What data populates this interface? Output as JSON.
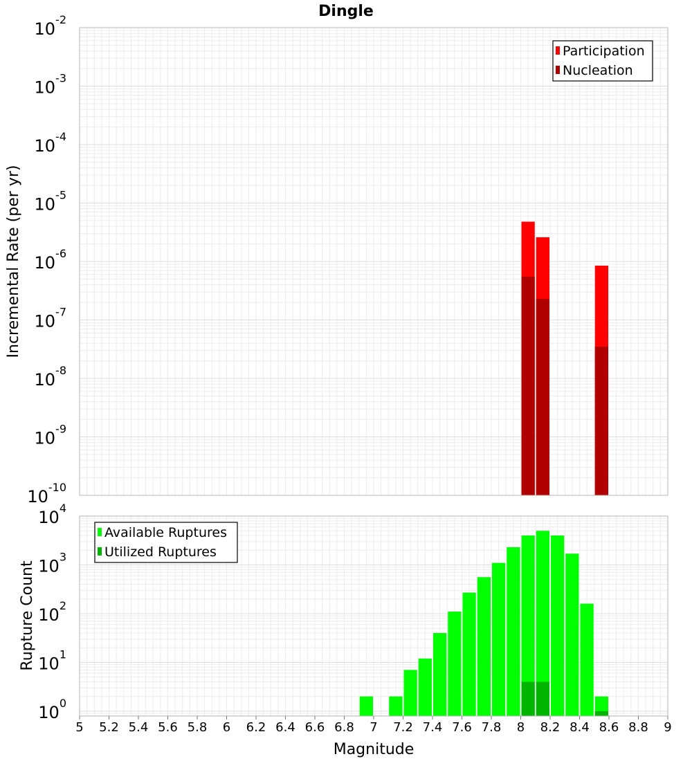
{
  "chart_data": [
    {
      "type": "bar",
      "title": "Dingle",
      "xlabel": "",
      "ylabel": "Incremental Rate (per yr)",
      "yscale": "log",
      "xlim": [
        5,
        9
      ],
      "ylim_exponents": [
        -10,
        -2
      ],
      "ytick_exponents": [
        -10,
        -9,
        -8,
        -7,
        -6,
        -5,
        -4,
        -3,
        -2
      ],
      "bin_width": 0.1,
      "grid": true,
      "legend_position": "top-right",
      "colors": {
        "Participation": "#ff0000",
        "Nucleation": "#b00000"
      },
      "series": [
        {
          "name": "Participation",
          "x": [
            8.05,
            8.15,
            8.55
          ],
          "values": [
            4.8e-06,
            2.6e-06,
            8.5e-07
          ]
        },
        {
          "name": "Nucleation",
          "x": [
            8.05,
            8.15,
            8.55
          ],
          "values": [
            5.5e-07,
            2.3e-07,
            3.5e-08
          ]
        }
      ]
    },
    {
      "type": "bar",
      "title": "",
      "xlabel": "Magnitude",
      "ylabel": "Rupture Count",
      "yscale": "log",
      "xlim": [
        5,
        9
      ],
      "ylim_exponents": [
        -0.1,
        4
      ],
      "ytick_exponents": [
        0,
        1,
        2,
        3,
        4
      ],
      "xticks": [
        "5",
        "5.2",
        "5.4",
        "5.6",
        "5.8",
        "6",
        "6.2",
        "6.4",
        "6.6",
        "6.8",
        "7",
        "7.2",
        "7.4",
        "7.6",
        "7.8",
        "8",
        "8.2",
        "8.4",
        "8.6",
        "8.8",
        "9"
      ],
      "bin_width": 0.1,
      "grid": true,
      "legend_position": "top-left",
      "colors": {
        "Available Ruptures": "#00ff00",
        "Utilized Ruptures": "#00b400"
      },
      "series": [
        {
          "name": "Available Ruptures",
          "x": [
            6.95,
            7.15,
            7.25,
            7.35,
            7.45,
            7.55,
            7.65,
            7.75,
            7.85,
            7.95,
            8.05,
            8.15,
            8.25,
            8.35,
            8.45,
            8.55
          ],
          "values": [
            2,
            2,
            7,
            12,
            40,
            110,
            270,
            560,
            1100,
            2300,
            4000,
            5000,
            4000,
            1700,
            160,
            2
          ]
        },
        {
          "name": "Utilized Ruptures",
          "x": [
            8.05,
            8.15,
            8.55
          ],
          "values": [
            4,
            4,
            1
          ]
        }
      ]
    }
  ]
}
